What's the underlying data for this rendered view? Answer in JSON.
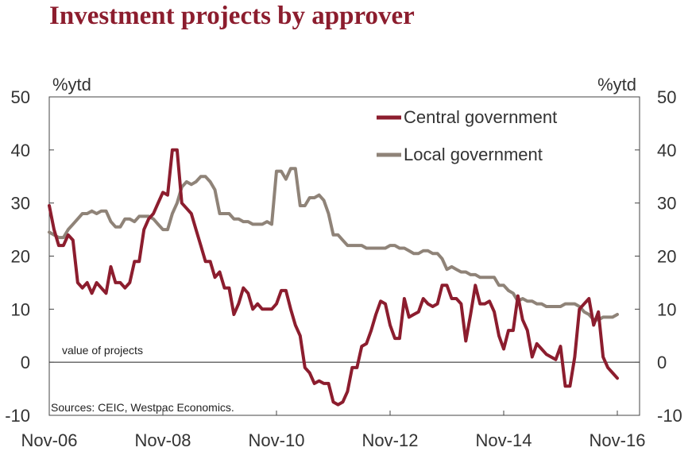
{
  "title": "Investment projects by approver",
  "chart_data": {
    "type": "line",
    "title": "Investment projects by approver",
    "y_unit_left": "%ytd",
    "y_unit_right": "%ytd",
    "ylim": [
      -10,
      50
    ],
    "yticks": [
      "50",
      "40",
      "30",
      "20",
      "10",
      "0",
      "-10"
    ],
    "x_range_months": [
      0,
      120
    ],
    "xticks": [
      {
        "label": "Nov-06",
        "month": 0
      },
      {
        "label": "Nov-08",
        "month": 24
      },
      {
        "label": "Nov-10",
        "month": 48
      },
      {
        "label": "Nov-12",
        "month": 72
      },
      {
        "label": "Nov-14",
        "month": 96
      },
      {
        "label": "Nov-16",
        "month": 120
      }
    ],
    "zero_line_label": "value of projects",
    "source": "Sources: CEIC, Westpac Economics.",
    "series": [
      {
        "name": "Central government",
        "color": "#8c1d2e",
        "x": [
          0,
          1,
          2,
          3,
          4,
          5,
          6,
          7,
          8,
          9,
          10,
          11,
          12,
          13,
          14,
          15,
          16,
          17,
          18,
          19,
          20,
          21,
          22,
          23,
          24,
          25,
          26,
          27,
          28,
          29,
          30,
          31,
          32,
          33,
          34,
          35,
          36,
          37,
          38,
          39,
          40,
          41,
          42,
          43,
          44,
          45,
          46,
          47,
          48,
          49,
          50,
          51,
          52,
          53,
          54,
          55,
          56,
          57,
          58,
          59,
          60,
          61,
          62,
          63,
          64,
          65,
          66,
          67,
          68,
          69,
          70,
          71,
          72,
          73,
          74,
          75,
          76,
          77,
          78,
          79,
          80,
          81,
          82,
          83,
          84,
          85,
          86,
          87,
          88,
          89,
          90,
          91,
          92,
          93,
          94,
          95,
          96,
          97,
          98,
          99,
          100,
          101,
          102,
          103,
          104,
          105,
          106,
          107,
          108,
          109,
          110,
          111,
          112,
          113,
          114,
          115,
          116,
          117,
          118,
          119,
          120
        ],
        "values": [
          29.5,
          25,
          22,
          22,
          24,
          23,
          15,
          14,
          15,
          13,
          15,
          14,
          13,
          18,
          15,
          15,
          14,
          15,
          19,
          19,
          25,
          27,
          28,
          30,
          32,
          31.5,
          40,
          40,
          30,
          29,
          28,
          25,
          22,
          19,
          19,
          16,
          17,
          14,
          14,
          9,
          11,
          14,
          13,
          10,
          11,
          10,
          10,
          10,
          11,
          13.5,
          13.5,
          10,
          7,
          5,
          -1,
          -2,
          -4,
          -3.5,
          -4,
          -4,
          -7.5,
          -8,
          -7.5,
          -5.5,
          -1,
          -1,
          3,
          3.5,
          6,
          9,
          11.5,
          11,
          7,
          4.5,
          4.5,
          12,
          8.5,
          9,
          9.5,
          12,
          11,
          10.5,
          11,
          14.5,
          14.5,
          12,
          12,
          11,
          4,
          9,
          14.5,
          11,
          11,
          11.5,
          9.5,
          5,
          2.5,
          6,
          6,
          12.5,
          8,
          6,
          1,
          3.5,
          2.5,
          1.5,
          1,
          0.5,
          3,
          -4.5,
          -4.5,
          1,
          10,
          11,
          12,
          7,
          9.5,
          1,
          -1,
          -2,
          -3
        ]
      },
      {
        "name": "Local government",
        "color": "#8f8378",
        "x": [
          0,
          1,
          2,
          3,
          4,
          5,
          6,
          7,
          8,
          9,
          10,
          11,
          12,
          13,
          14,
          15,
          16,
          17,
          18,
          19,
          20,
          21,
          22,
          23,
          24,
          25,
          26,
          27,
          28,
          29,
          30,
          31,
          32,
          33,
          34,
          35,
          36,
          37,
          38,
          39,
          40,
          41,
          42,
          43,
          44,
          45,
          46,
          47,
          48,
          49,
          50,
          51,
          52,
          53,
          54,
          55,
          56,
          57,
          58,
          59,
          60,
          61,
          62,
          63,
          64,
          65,
          66,
          67,
          68,
          69,
          70,
          71,
          72,
          73,
          74,
          75,
          76,
          77,
          78,
          79,
          80,
          81,
          82,
          83,
          84,
          85,
          86,
          87,
          88,
          89,
          90,
          91,
          92,
          93,
          94,
          95,
          96,
          97,
          98,
          99,
          100,
          101,
          102,
          103,
          104,
          105,
          106,
          107,
          108,
          109,
          110,
          111,
          112,
          113,
          114,
          115,
          116,
          117,
          118,
          119,
          120
        ],
        "values": [
          24.5,
          24,
          23.5,
          23.5,
          25,
          26,
          27,
          28,
          28,
          28.5,
          28,
          28.5,
          28.5,
          26.5,
          25.5,
          25.5,
          27,
          27,
          26.5,
          27.5,
          27.5,
          27.5,
          27,
          26,
          25,
          25,
          28,
          30,
          33,
          34,
          33.5,
          34,
          35,
          35,
          34,
          32.5,
          28,
          28,
          28,
          27,
          27,
          26.5,
          26.5,
          26,
          26,
          26,
          26.5,
          26,
          36,
          36,
          34.5,
          36.5,
          36.5,
          29.5,
          29.5,
          31,
          31,
          31.5,
          30.5,
          28,
          24,
          24,
          23,
          22,
          22,
          22,
          22,
          21.5,
          21.5,
          21.5,
          21.5,
          21.5,
          22,
          22,
          21.5,
          21.5,
          21,
          20.5,
          20.5,
          21,
          21,
          20.5,
          20.5,
          19.5,
          17.5,
          18,
          17.5,
          17,
          17,
          16.5,
          16.5,
          16,
          16,
          16,
          16,
          14.5,
          14.5,
          13.5,
          13,
          11.5,
          12,
          11.5,
          11.5,
          11,
          11,
          10.5,
          10.5,
          10.5,
          10.5,
          11,
          11,
          11,
          10.5,
          9.5,
          9,
          8,
          8,
          8.5,
          8.5,
          8.5,
          9
        ]
      }
    ],
    "legend_position": "top-right"
  }
}
